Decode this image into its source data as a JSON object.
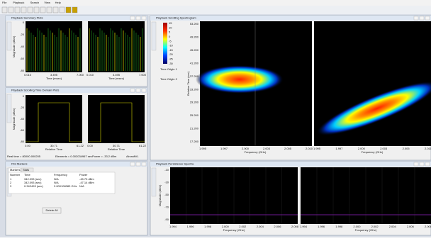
{
  "menu": [
    "File",
    "Playback",
    "Search",
    "View",
    "Help"
  ],
  "summary": {
    "title": "Playback Summary Plots",
    "y_label": "Magnitude (dBm)",
    "x_label": "Time (msec)",
    "yticks": [
      "0",
      "-20",
      "-40",
      "-60",
      "-80"
    ],
    "xticks": [
      "0.010",
      "3.495",
      "7.000"
    ]
  },
  "time_domain": {
    "title": "Playback Scrolling Time Domain Plots",
    "y_label": "Magnitude (dBm)",
    "x_label": "Relative Time",
    "yticks": [
      "0",
      "-20",
      "-40",
      "-60",
      "-80"
    ],
    "xticks": [
      "0.00",
      "30.71",
      "61.22"
    ],
    "status": [
      "Real time = 80000.000205",
      "Elements = 0.002034967 sec",
      "Power = -33.2 dBm",
      "AircraftVL"
    ]
  },
  "markers": {
    "title": "Plot Markers",
    "tabs": [
      "Markers",
      "Stats"
    ],
    "columns": [
      "Number",
      "Time",
      "Frequency",
      "Power"
    ],
    "rows": [
      [
        "1",
        "342.093 (sec)",
        "N/A",
        "-45.73 dBm"
      ],
      [
        "2",
        "342.093 (sec)",
        "N/A",
        "-47.14 dBm"
      ],
      [
        "3",
        "0.342493 (sec)",
        "2.000108383 GHz",
        "N/A"
      ]
    ],
    "button": "Delete All"
  },
  "spectrogram": {
    "title": "Playback Scrolling Spectrogram",
    "y_label": "Relative Time (sec)",
    "x_label": "Frequency (GHz)",
    "colorbar_ticks": [
      "15",
      "10",
      "5",
      "0",
      "-5",
      "-10",
      "-15",
      "-20",
      "-25",
      "-30"
    ],
    "origins": [
      "Time Origin 1",
      "Time Origin 2"
    ],
    "yticks": [
      "53.200",
      "49.200",
      "45.200",
      "41.200",
      "37.200",
      "33.200",
      "29.200",
      "25.200",
      "21.200",
      "17.200"
    ],
    "xticks": [
      "1.995",
      "1.997",
      "2.000",
      "2.003",
      "2.005",
      "2.010"
    ]
  },
  "persistence": {
    "title": "Playback Persistence Spectra",
    "y_label": "Magnitude (dBm)",
    "x_label": "Frequency (GHz)",
    "yticks": [
      "-10",
      "-30",
      "-50",
      "-70",
      "-90"
    ],
    "xticks": [
      "1.994",
      "1.996",
      "1.998",
      "2.000",
      "2.002",
      "2.004",
      "2.006",
      "2.008"
    ]
  }
}
